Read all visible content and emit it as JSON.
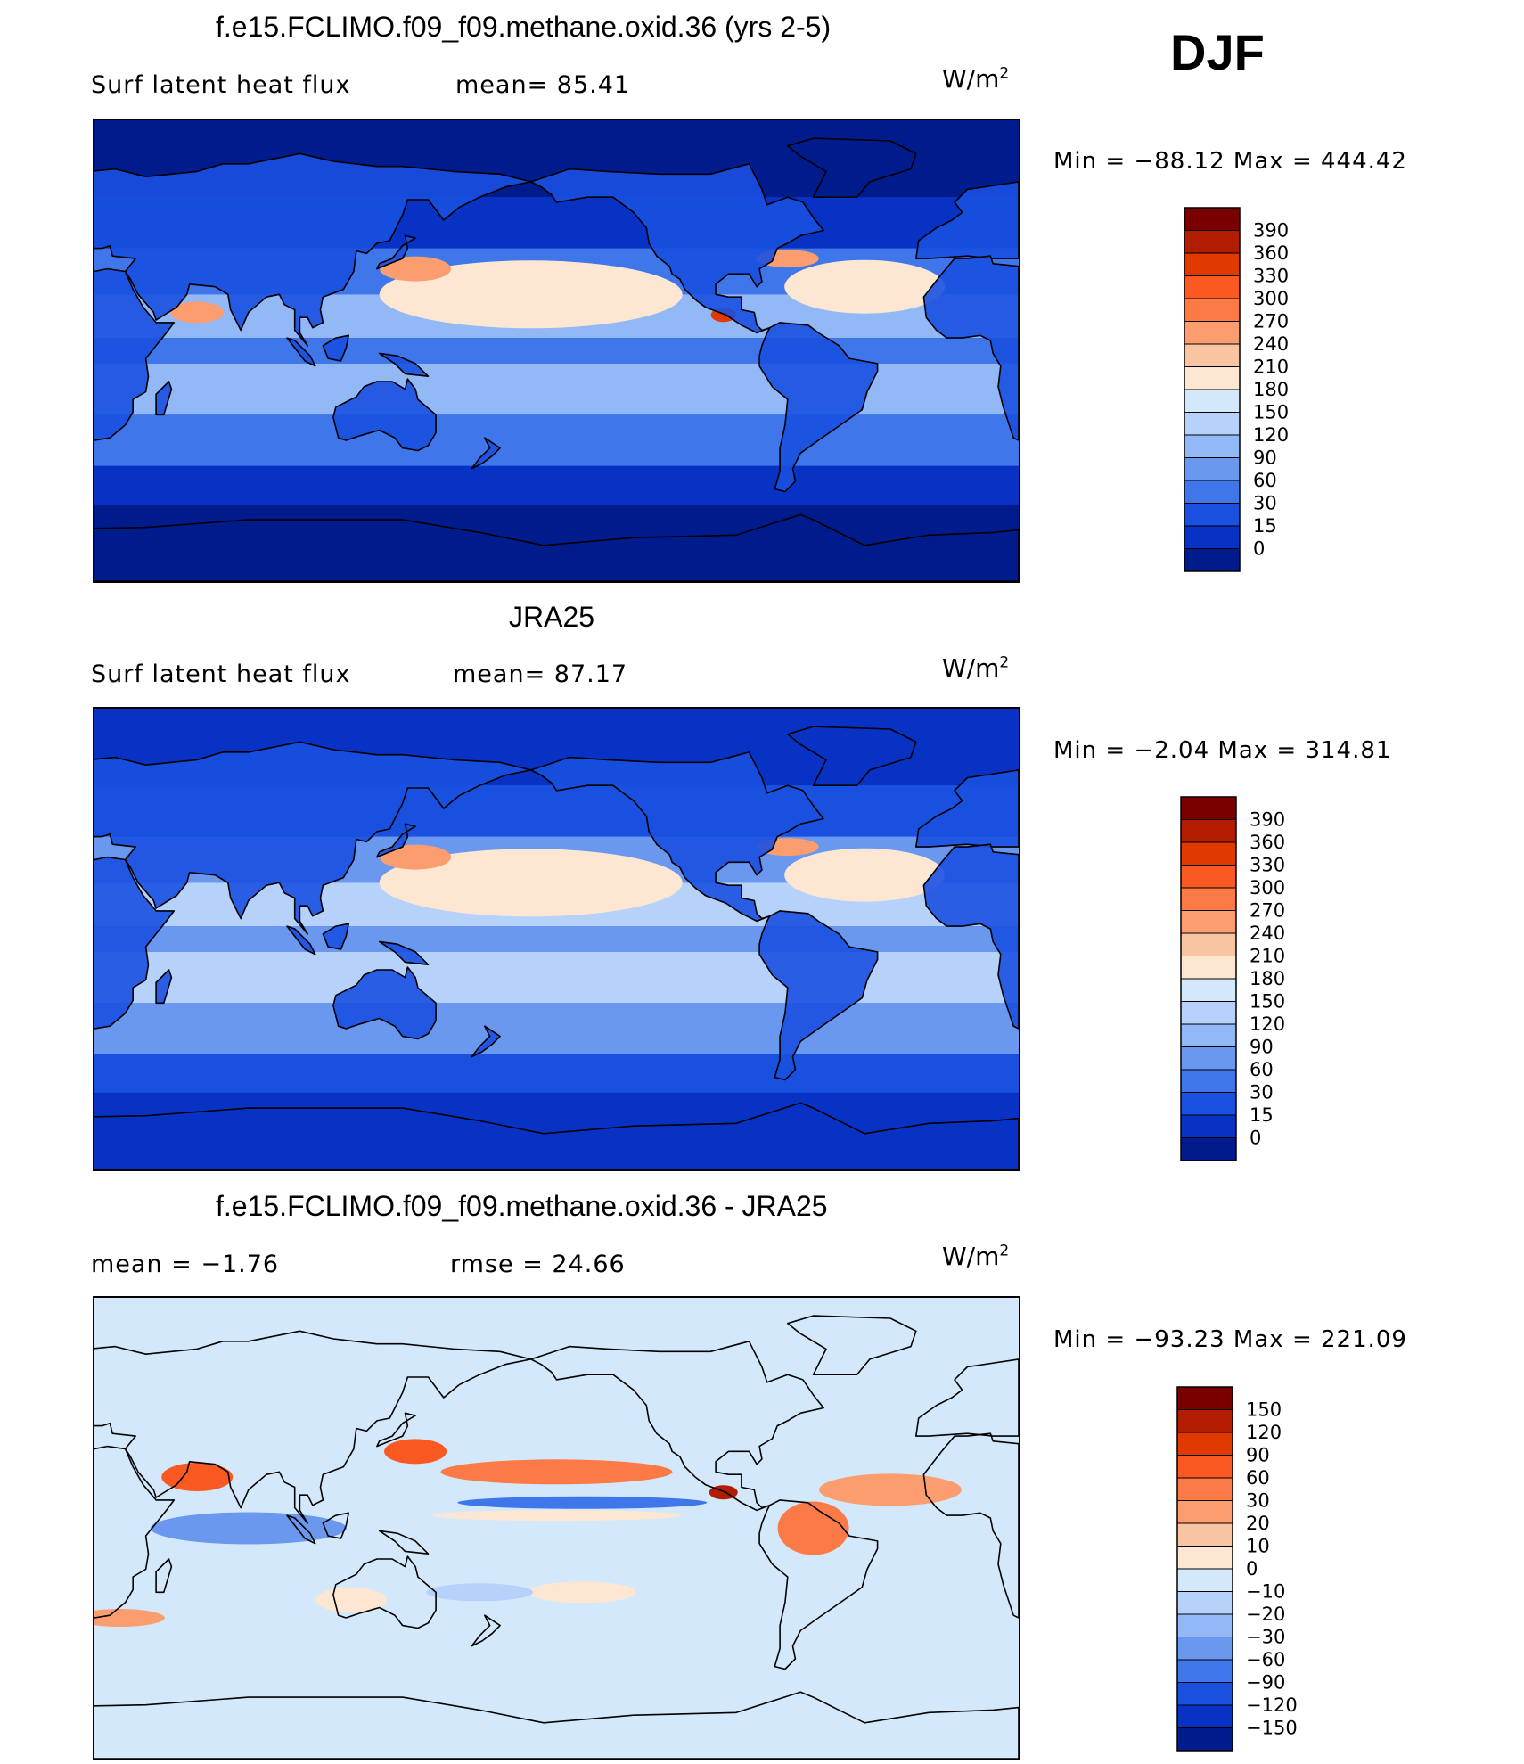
{
  "season": "DJF",
  "panels": [
    {
      "title": "f.e15.FCLIMO.f09_f09.methane.oxid.36 (yrs 2-5)",
      "variable": "Surf latent heat flux",
      "stat1": "mean=  85.41",
      "stat2": "",
      "units": "W/m",
      "units_exp": "2",
      "minmax": "Min = −88.12 Max = 444.42"
    },
    {
      "title": "JRA25",
      "variable": "Surf latent heat flux",
      "stat1": "mean=  87.17",
      "stat2": "",
      "units": "W/m",
      "units_exp": "2",
      "minmax": "Min =  −2.04 Max = 314.81"
    },
    {
      "title": "f.e15.FCLIMO.f09_f09.methane.oxid.36 - JRA25",
      "variable": "",
      "stat1": "mean =  −1.76",
      "stat2": "rmse =  24.66",
      "units": "W/m",
      "units_exp": "2",
      "minmax": "Min = −93.23 Max = 221.09"
    }
  ],
  "chart_data": [
    {
      "type": "heatmap",
      "title": "f.e15.FCLIMO.f09_f09.methane.oxid.36 (yrs 2-5)",
      "variable": "Surf latent heat flux",
      "units": "W/m2",
      "mean": 85.41,
      "min": -88.12,
      "max": 444.42,
      "colorbar_labels": [
        "390",
        "360",
        "330",
        "300",
        "270",
        "240",
        "210",
        "180",
        "150",
        "120",
        "90",
        "60",
        "30",
        "15",
        "0"
      ],
      "colorbar_colors": [
        "#7a0000",
        "#b21c00",
        "#e03a00",
        "#fa5a22",
        "#fc7a45",
        "#fb9d6e",
        "#f9c4a2",
        "#fde7d2",
        "#d4e8fb",
        "#b6d2fb",
        "#93b8f6",
        "#6a98ef",
        "#3f76ea",
        "#1a50e0",
        "#0832c4",
        "#001c8c"
      ]
    },
    {
      "type": "heatmap",
      "title": "JRA25",
      "variable": "Surf latent heat flux",
      "units": "W/m2",
      "mean": 87.17,
      "min": -2.04,
      "max": 314.81,
      "colorbar_labels": [
        "390",
        "360",
        "330",
        "300",
        "270",
        "240",
        "210",
        "180",
        "150",
        "120",
        "90",
        "60",
        "30",
        "15",
        "0"
      ],
      "colorbar_colors": [
        "#7a0000",
        "#b21c00",
        "#e03a00",
        "#fa5a22",
        "#fc7a45",
        "#fb9d6e",
        "#f9c4a2",
        "#fde7d2",
        "#d4e8fb",
        "#b6d2fb",
        "#93b8f6",
        "#6a98ef",
        "#3f76ea",
        "#1a50e0",
        "#0832c4",
        "#001c8c"
      ]
    },
    {
      "type": "heatmap",
      "title": "f.e15.FCLIMO.f09_f09.methane.oxid.36 - JRA25",
      "units": "W/m2",
      "mean": -1.76,
      "rmse": 24.66,
      "min": -93.23,
      "max": 221.09,
      "colorbar_labels": [
        "150",
        "120",
        "90",
        "60",
        "30",
        "20",
        "10",
        "0",
        "−10",
        "−20",
        "−30",
        "−60",
        "−90",
        "−120",
        "−150"
      ],
      "colorbar_colors": [
        "#7a0000",
        "#b21c00",
        "#e03a00",
        "#fa5a22",
        "#fc7a45",
        "#fb9d6e",
        "#f9c4a2",
        "#fde7d2",
        "#d4e8fb",
        "#b6d2fb",
        "#93b8f6",
        "#6a98ef",
        "#3f76ea",
        "#1a50e0",
        "#0832c4",
        "#001c8c"
      ]
    }
  ]
}
